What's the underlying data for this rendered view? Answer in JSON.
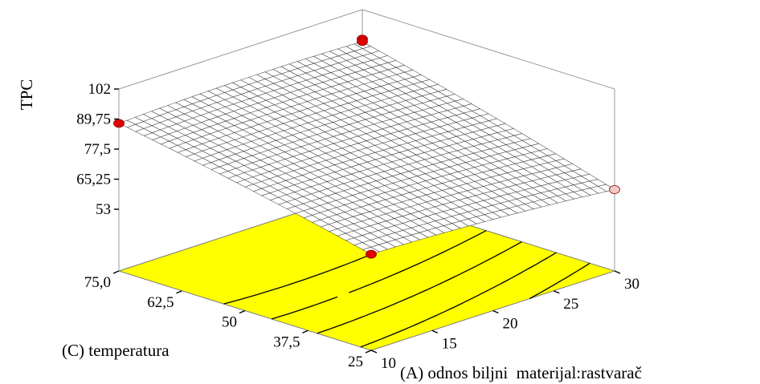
{
  "chart_data": {
    "type": "surface3d",
    "title": "",
    "zlabel": "TPC",
    "xlabel": "(A) odnos biljni  materijal:rastvarač",
    "ylabel": "(C) temperatura",
    "x_range": [
      10,
      30
    ],
    "y_range": [
      25,
      75
    ],
    "z_range": [
      53,
      102
    ],
    "x_ticks": [
      "10",
      "15",
      "20",
      "25",
      "30"
    ],
    "y_ticks": [
      "25",
      "37,5",
      "50",
      "62,5",
      "75,0"
    ],
    "z_ticks": [
      "53",
      "65,25",
      "77,5",
      "89,75",
      "102"
    ],
    "corner_values": [
      {
        "x": 10,
        "y": 75,
        "z": 88
      },
      {
        "x": 10,
        "y": 25,
        "z": 67
      },
      {
        "x": 30,
        "y": 75,
        "z": 89
      },
      {
        "x": 30,
        "y": 25,
        "z": 61
      }
    ],
    "design_points": [
      {
        "x": 10,
        "y": 75,
        "z": 88,
        "color": "#e00000"
      },
      {
        "x": 30,
        "y": 75,
        "z": 90,
        "color": "#e00000"
      },
      {
        "x": 30,
        "y": 75,
        "z": 89,
        "color": "#e00000"
      },
      {
        "x": 10,
        "y": 25,
        "z": 67,
        "color": "#e00000"
      },
      {
        "x": 30,
        "y": 25,
        "z": 61,
        "color": "#f2c8c8"
      }
    ],
    "floor_color": "#ffff00",
    "surface_color": "#ffffff",
    "grid": false
  }
}
